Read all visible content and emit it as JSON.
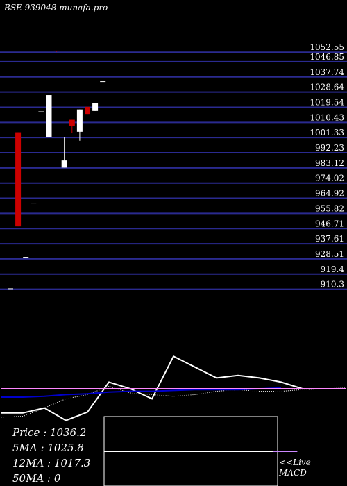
{
  "header": {
    "title": "BSE 939048  munafa.pro"
  },
  "chart_data": [
    {
      "type": "candlestick",
      "title": "BSE 939048  munafa.pro",
      "y_ticks": [
        1052.55,
        1046.85,
        1037.74,
        1028.64,
        1019.54,
        1010.43,
        1001.33,
        992.23,
        983.12,
        974.02,
        964.92,
        955.82,
        946.71,
        937.61,
        928.51,
        919.4,
        910.3
      ],
      "ylim": [
        906.4,
        1058.9
      ],
      "grid": true,
      "candles": [
        {
          "x": 1,
          "open": 910.6,
          "close": 910.6,
          "high": 910.6,
          "low": 910.6
        },
        {
          "x": 2,
          "open": 1004.5,
          "close": 948.0,
          "high": 1004.5,
          "low": 948.0
        },
        {
          "x": 3,
          "open": 929.5,
          "close": 929.5,
          "high": 929.5,
          "low": 929.5
        },
        {
          "x": 4,
          "open": 962.0,
          "close": 962.0,
          "high": 962.0,
          "low": 962.0
        },
        {
          "x": 5,
          "open": 1016.8,
          "close": 1016.8,
          "high": 1016.8,
          "low": 1016.8
        },
        {
          "x": 6,
          "open": 1001.5,
          "close": 1026.8,
          "high": 1026.8,
          "low": 1001.5
        },
        {
          "x": 7,
          "open": 1053.3,
          "close": 1053.1,
          "high": 1053.3,
          "low": 1052.8
        },
        {
          "x": 8,
          "open": 983.3,
          "close": 987.6,
          "high": 1001.5,
          "low": 983.3
        },
        {
          "x": 9,
          "open": 1012.0,
          "close": 1008.3,
          "high": 1012.0,
          "low": 1004.2
        },
        {
          "x": 10,
          "open": 1004.8,
          "close": 1018.2,
          "high": 1018.2,
          "low": 999.4
        },
        {
          "x": 11,
          "open": 1019.8,
          "close": 1015.5,
          "high": 1019.8,
          "low": 1015.5
        },
        {
          "x": 12,
          "open": 1017.3,
          "close": 1021.9,
          "high": 1021.9,
          "low": 1017.3
        },
        {
          "x": 13,
          "open": 1034.9,
          "close": 1034.9,
          "high": 1034.9,
          "low": 1034.9
        }
      ]
    },
    {
      "type": "line",
      "series": [
        {
          "color": "#ffffff",
          "x": [
            1,
            2,
            3,
            4,
            5,
            6,
            7,
            8,
            9,
            10,
            11,
            12,
            13,
            14,
            15
          ],
          "values": [
            29,
            29,
            23,
            38,
            28,
            -8,
            0,
            12,
            -39,
            -26,
            -13,
            -16,
            -13,
            -8,
            0
          ]
        },
        {
          "color": "#ffffff",
          "style": "dotted",
          "x": [
            1,
            2,
            3,
            4,
            5,
            6,
            7,
            8,
            9,
            10,
            11,
            12,
            13,
            14,
            15,
            16,
            17
          ],
          "values": [
            34,
            33,
            23,
            12,
            7,
            -3,
            5,
            7,
            9,
            7,
            3,
            1,
            3,
            3,
            1,
            0,
            -1
          ]
        },
        {
          "color": "#0000cc",
          "x": [
            1,
            2,
            3,
            4,
            5,
            6,
            7,
            8,
            9,
            10,
            11,
            12,
            13,
            14
          ],
          "values": [
            10,
            10,
            9,
            7,
            6,
            4,
            3,
            3,
            2,
            1,
            1,
            1,
            0,
            -1
          ]
        },
        {
          "color": "#ff88ff",
          "x": [
            1,
            2,
            3,
            4,
            5,
            6,
            7,
            8,
            9,
            10,
            11,
            12,
            13,
            14,
            15,
            16,
            17
          ],
          "values": [
            0,
            0,
            0,
            0,
            0,
            0,
            0,
            0,
            0,
            0,
            0,
            0,
            0,
            0,
            0,
            0,
            0
          ]
        }
      ]
    },
    {
      "type": "line",
      "series": [
        {
          "color": "#ffffff",
          "x": [
            1,
            2,
            3,
            4,
            5,
            6,
            7,
            8
          ],
          "values": [
            1,
            1,
            1,
            1,
            1,
            1,
            1,
            1
          ]
        },
        {
          "color": "#cc88ff",
          "x": [
            8,
            9
          ],
          "values": [
            1,
            1
          ]
        }
      ]
    }
  ],
  "stats": {
    "price": "Price   : 1036.2",
    "ma5": "5MA : 1025.8",
    "ma12": "12MA : 1017.3",
    "ma50": "50MA : 0"
  },
  "macd": {
    "label1": "<<Live",
    "label2": "MACD"
  },
  "colors": {
    "background": "#000000",
    "grid": "#2a2a90",
    "up": "#ffffff",
    "down": "#cc0000",
    "ma_line": "#0000cc",
    "zero_line": "#ff88ff"
  }
}
